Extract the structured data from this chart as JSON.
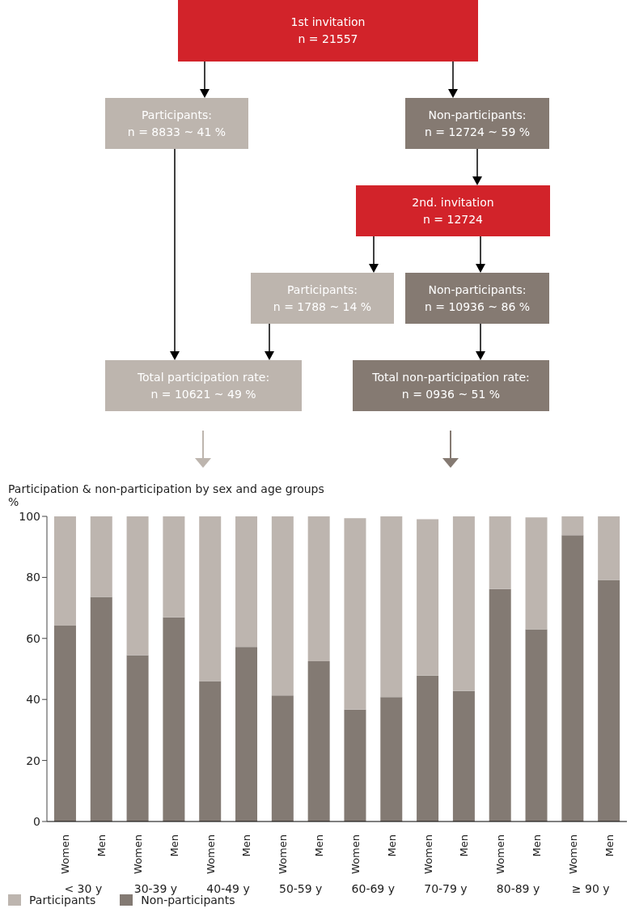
{
  "chart_data": [
    {
      "type": "other",
      "colors": [
        "#d2232a",
        "#bdb5ae",
        "#857a72",
        "#d2232a",
        "#bdb5ae",
        "#857a72",
        "#bdb5ae",
        "#857a72"
      ],
      "annotations": [
        "1st invitation",
        "n = 21557",
        "Participants:",
        "n = 8833 ~ 41 %",
        "Non-participants:",
        "n = 12724 ~ 59 %",
        "2nd. invitation",
        "n = 12724",
        "Participants:",
        "n = 1788 ~ 14 %",
        "Non-participants:",
        "n = 10936 ~ 86 %",
        "Total participation rate:",
        "n = 10621 ~ 49 %",
        "Total non-participation rate:",
        "n = 0936 ~ 51 %"
      ]
    },
    {
      "type": "bar",
      "title": "Participation & non-participation by sex and age groups",
      "ylabel": "%",
      "stacked": true,
      "categories": [
        "Women",
        "Men",
        "Women",
        "Men",
        "Women",
        "Men",
        "Women",
        "Men",
        "Women",
        "Men",
        "Women",
        "Men",
        "Women",
        "Men",
        "Women",
        "Men"
      ],
      "annotations": [
        "< 30 y",
        "30-39 y",
        "40-49 y",
        "50-59 y",
        "60-69 y",
        "70-79 y",
        "80-89 y",
        "≥ 90 y"
      ],
      "series": [
        {
          "name": "Non-participants",
          "color": "#837a73",
          "values": [
            64.2,
            73.6,
            54.5,
            66.9,
            46.0,
            57.2,
            41.3,
            52.5,
            36.7,
            40.8,
            47.8,
            42.8,
            76.2,
            63.0,
            93.8,
            79.2
          ]
        },
        {
          "name": "Participants",
          "color": "#bdb5af",
          "values": [
            35.8,
            26.4,
            45.5,
            33.1,
            54.0,
            42.8,
            58.7,
            47.5,
            62.7,
            59.2,
            51.3,
            57.2,
            23.8,
            36.7,
            6.2,
            20.8
          ]
        }
      ],
      "ylim": [
        0,
        100
      ],
      "yticks": [
        0,
        20,
        40,
        60,
        80,
        100
      ],
      "grid": false,
      "legend": "bottom left"
    }
  ]
}
